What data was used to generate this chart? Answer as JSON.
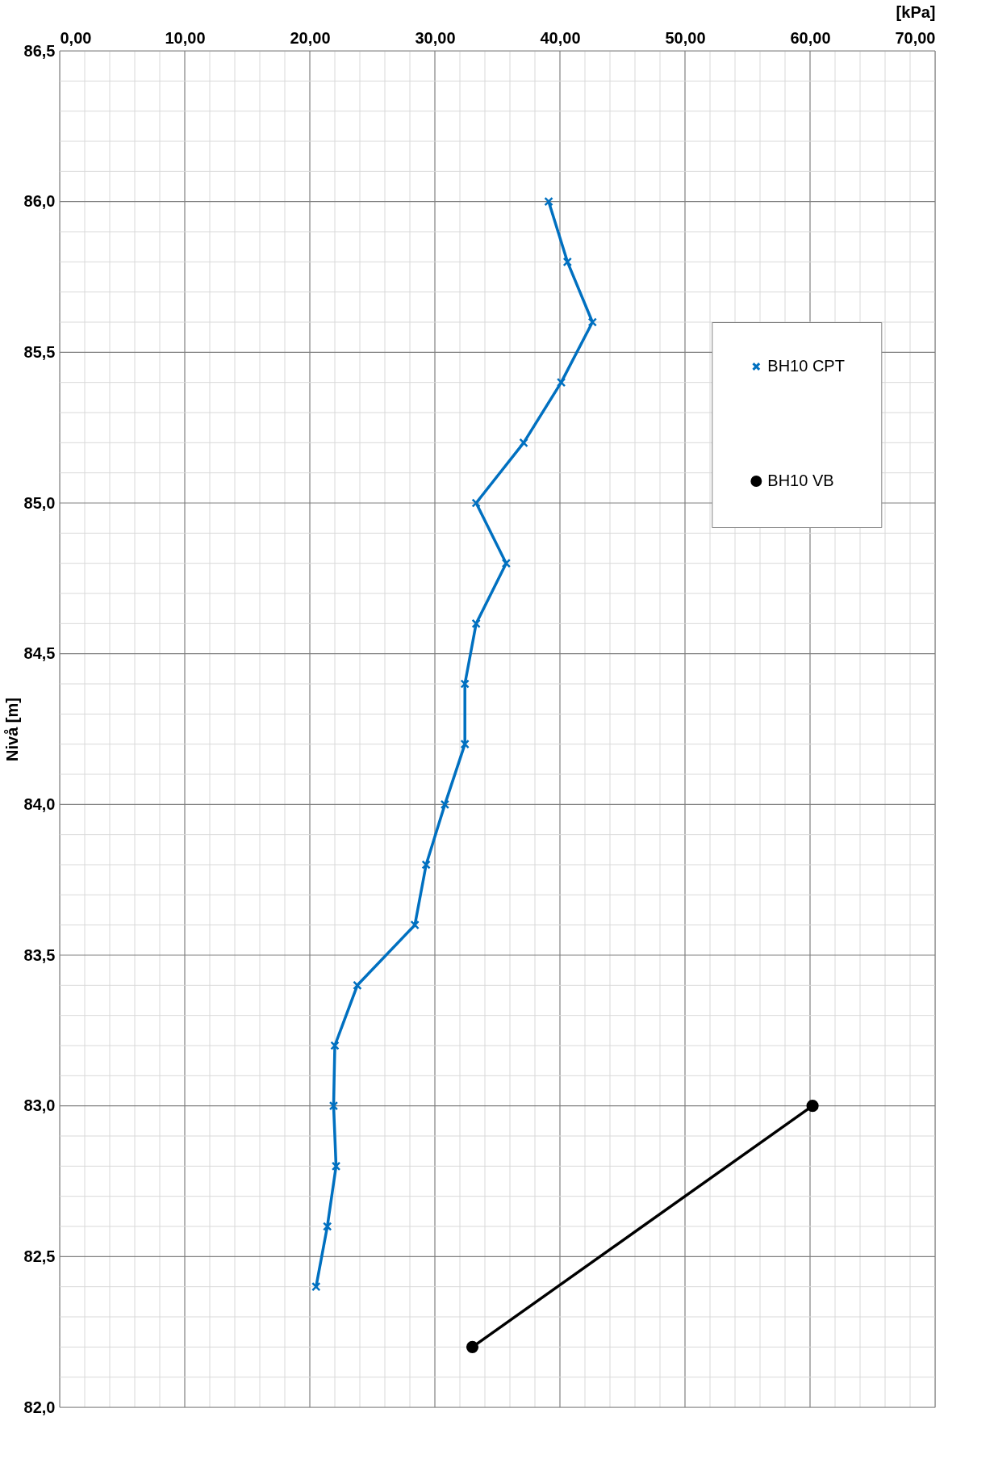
{
  "chart_data": {
    "type": "line",
    "xlabel": "[kPa]",
    "ylabel": "Nivå [m]",
    "xlim": [
      0,
      70
    ],
    "ylim": [
      82.0,
      86.5
    ],
    "xticks": [
      {
        "value": 0,
        "label": "0,00"
      },
      {
        "value": 2,
        "label": null
      },
      {
        "value": 4,
        "label": null
      },
      {
        "value": 6,
        "label": null
      },
      {
        "value": 8,
        "label": null
      },
      {
        "value": 10,
        "label": "10,00"
      },
      {
        "value": 12,
        "label": null
      },
      {
        "value": 14,
        "label": null
      },
      {
        "value": 16,
        "label": null
      },
      {
        "value": 18,
        "label": null
      },
      {
        "value": 20,
        "label": "20,00"
      },
      {
        "value": 22,
        "label": null
      },
      {
        "value": 24,
        "label": null
      },
      {
        "value": 26,
        "label": null
      },
      {
        "value": 28,
        "label": null
      },
      {
        "value": 30,
        "label": "30,00"
      },
      {
        "value": 32,
        "label": null
      },
      {
        "value": 34,
        "label": null
      },
      {
        "value": 36,
        "label": null
      },
      {
        "value": 38,
        "label": null
      },
      {
        "value": 40,
        "label": "40,00"
      },
      {
        "value": 42,
        "label": null
      },
      {
        "value": 44,
        "label": null
      },
      {
        "value": 46,
        "label": null
      },
      {
        "value": 48,
        "label": null
      },
      {
        "value": 50,
        "label": "50,00"
      },
      {
        "value": 52,
        "label": null
      },
      {
        "value": 54,
        "label": null
      },
      {
        "value": 56,
        "label": null
      },
      {
        "value": 58,
        "label": null
      },
      {
        "value": 60,
        "label": "60,00"
      },
      {
        "value": 62,
        "label": null
      },
      {
        "value": 64,
        "label": null
      },
      {
        "value": 66,
        "label": null
      },
      {
        "value": 68,
        "label": null
      },
      {
        "value": 70,
        "label": "70,00"
      }
    ],
    "yticks": [
      {
        "value": 82.0,
        "label": "82,0"
      },
      {
        "value": 82.1,
        "label": null
      },
      {
        "value": 82.2,
        "label": null
      },
      {
        "value": 82.3,
        "label": null
      },
      {
        "value": 82.4,
        "label": null
      },
      {
        "value": 82.5,
        "label": "82,5"
      },
      {
        "value": 82.6,
        "label": null
      },
      {
        "value": 82.7,
        "label": null
      },
      {
        "value": 82.8,
        "label": null
      },
      {
        "value": 82.9,
        "label": null
      },
      {
        "value": 83.0,
        "label": "83,0"
      },
      {
        "value": 83.1,
        "label": null
      },
      {
        "value": 83.2,
        "label": null
      },
      {
        "value": 83.3,
        "label": null
      },
      {
        "value": 83.4,
        "label": null
      },
      {
        "value": 83.5,
        "label": "83,5"
      },
      {
        "value": 83.6,
        "label": null
      },
      {
        "value": 83.7,
        "label": null
      },
      {
        "value": 83.8,
        "label": null
      },
      {
        "value": 83.9,
        "label": null
      },
      {
        "value": 84.0,
        "label": "84,0"
      },
      {
        "value": 84.1,
        "label": null
      },
      {
        "value": 84.2,
        "label": null
      },
      {
        "value": 84.3,
        "label": null
      },
      {
        "value": 84.4,
        "label": null
      },
      {
        "value": 84.5,
        "label": "84,5"
      },
      {
        "value": 84.6,
        "label": null
      },
      {
        "value": 84.7,
        "label": null
      },
      {
        "value": 84.8,
        "label": null
      },
      {
        "value": 84.9,
        "label": null
      },
      {
        "value": 85.0,
        "label": "85,0"
      },
      {
        "value": 85.1,
        "label": null
      },
      {
        "value": 85.2,
        "label": null
      },
      {
        "value": 85.3,
        "label": null
      },
      {
        "value": 85.4,
        "label": null
      },
      {
        "value": 85.5,
        "label": "85,5"
      },
      {
        "value": 85.6,
        "label": null
      },
      {
        "value": 85.7,
        "label": null
      },
      {
        "value": 85.8,
        "label": null
      },
      {
        "value": 85.9,
        "label": null
      },
      {
        "value": 86.0,
        "label": "86,0"
      },
      {
        "value": 86.1,
        "label": null
      },
      {
        "value": 86.2,
        "label": null
      },
      {
        "value": 86.3,
        "label": null
      },
      {
        "value": 86.4,
        "label": null
      },
      {
        "value": 86.5,
        "label": "86,5"
      }
    ],
    "grid": true,
    "legend": "right",
    "line_style": "solid",
    "series": [
      {
        "name": "BH10 CPT",
        "color": "#0070c0",
        "marker": "cross",
        "x": [
          39.1,
          40.6,
          42.6,
          40.1,
          37.1,
          33.3,
          35.7,
          33.3,
          32.4,
          32.4,
          30.8,
          29.3,
          28.4,
          23.8,
          22.0,
          21.9,
          22.1,
          21.4,
          20.5
        ],
        "values": [
          86.0,
          85.8,
          85.6,
          85.4,
          85.2,
          85.0,
          84.8,
          84.6,
          84.4,
          84.2,
          84.0,
          83.8,
          83.6,
          83.4,
          83.2,
          83.0,
          82.8,
          82.6,
          82.4
        ]
      },
      {
        "name": "BH10 VB",
        "color": "#000000",
        "marker": "circle",
        "x": [
          60.2,
          33.0
        ],
        "values": [
          83.0,
          82.2
        ]
      }
    ]
  }
}
